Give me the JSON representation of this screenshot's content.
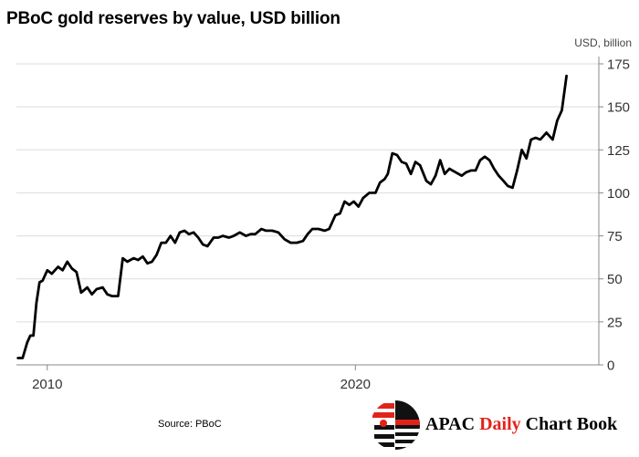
{
  "title": "PBoC gold reserves by value, USD billion",
  "source": "Source: PBoC",
  "logo": {
    "part1": "APAC",
    "part2": "Daily",
    "part3": "Chart Book",
    "accent_color": "#e2231a"
  },
  "chart_data": {
    "type": "line",
    "title": "PBoC gold reserves by value, USD billion",
    "ylabel": "USD, billion",
    "xlabel": "",
    "ylim": [
      0,
      175
    ],
    "yticks": [
      0,
      25,
      50,
      75,
      100,
      125,
      150,
      175
    ],
    "xlim": [
      2009.0,
      2027.9
    ],
    "xticks": [
      {
        "value": 2010,
        "label": "2010"
      },
      {
        "value": 2020,
        "label": "2020"
      }
    ],
    "grid": true,
    "line_color": "#000000",
    "series": [
      {
        "x": [
          2009.05,
          2009.2,
          2009.35,
          2009.45,
          2009.55,
          2009.65,
          2009.75,
          2009.85,
          2010.0,
          2010.15,
          2010.35,
          2010.5,
          2010.65,
          2010.8,
          2010.95,
          2011.1,
          2011.3,
          2011.45,
          2011.6,
          2011.8,
          2011.95,
          2012.1,
          2012.3,
          2012.45,
          2012.6,
          2012.8,
          2012.95,
          2013.1,
          2013.25,
          2013.4,
          2013.55,
          2013.7,
          2013.85,
          2014.0,
          2014.15,
          2014.3,
          2014.45,
          2014.6,
          2014.75,
          2014.9,
          2015.05,
          2015.2,
          2015.4,
          2015.55,
          2015.7,
          2015.9,
          2016.05,
          2016.25,
          2016.45,
          2016.6,
          2016.75,
          2016.95,
          2017.1,
          2017.3,
          2017.5,
          2017.7,
          2017.9,
          2018.1,
          2018.3,
          2018.45,
          2018.6,
          2018.8,
          2019.0,
          2019.15,
          2019.35,
          2019.5,
          2019.65,
          2019.8,
          2019.95,
          2020.1,
          2020.25,
          2020.45,
          2020.65,
          2020.8,
          2020.95,
          2021.05,
          2021.2,
          2021.35,
          2021.5,
          2021.65,
          2021.8,
          2021.95,
          2022.1,
          2022.3,
          2022.45,
          2022.6,
          2022.75,
          2022.9,
          2023.05,
          2023.25,
          2023.45,
          2023.6,
          2023.75,
          2023.9,
          2024.05,
          2024.2,
          2024.35,
          2024.5,
          2024.65,
          2024.8,
          2024.95,
          2025.1,
          2025.25,
          2025.4,
          2025.55,
          2025.7,
          2025.85,
          2026.0,
          2026.2,
          2026.4,
          2026.55,
          2026.7,
          2026.85
        ],
        "y": [
          4,
          4,
          13,
          17,
          17,
          36,
          48,
          49,
          55,
          53,
          57,
          55,
          60,
          56,
          54,
          42,
          45,
          41,
          44,
          45,
          41,
          40,
          40,
          62,
          60,
          62,
          61,
          63,
          59,
          60,
          64,
          71,
          71,
          75,
          71,
          77,
          78,
          76,
          77,
          74,
          70,
          69,
          74,
          74,
          75,
          74,
          75,
          77,
          75,
          76,
          76,
          79,
          78,
          78,
          77,
          73,
          71,
          71,
          72,
          76,
          79,
          79,
          78,
          79,
          87,
          88,
          95,
          93,
          95,
          92,
          97,
          100,
          100,
          106,
          108,
          111,
          123,
          122,
          118,
          117,
          111,
          118,
          116,
          107,
          105,
          110,
          119,
          111,
          114,
          112,
          110,
          112,
          113,
          113,
          119,
          121,
          119,
          114,
          110,
          107,
          104,
          103,
          113,
          125,
          120,
          131,
          132,
          131,
          135,
          131,
          142,
          148,
          168
        ]
      }
    ]
  }
}
